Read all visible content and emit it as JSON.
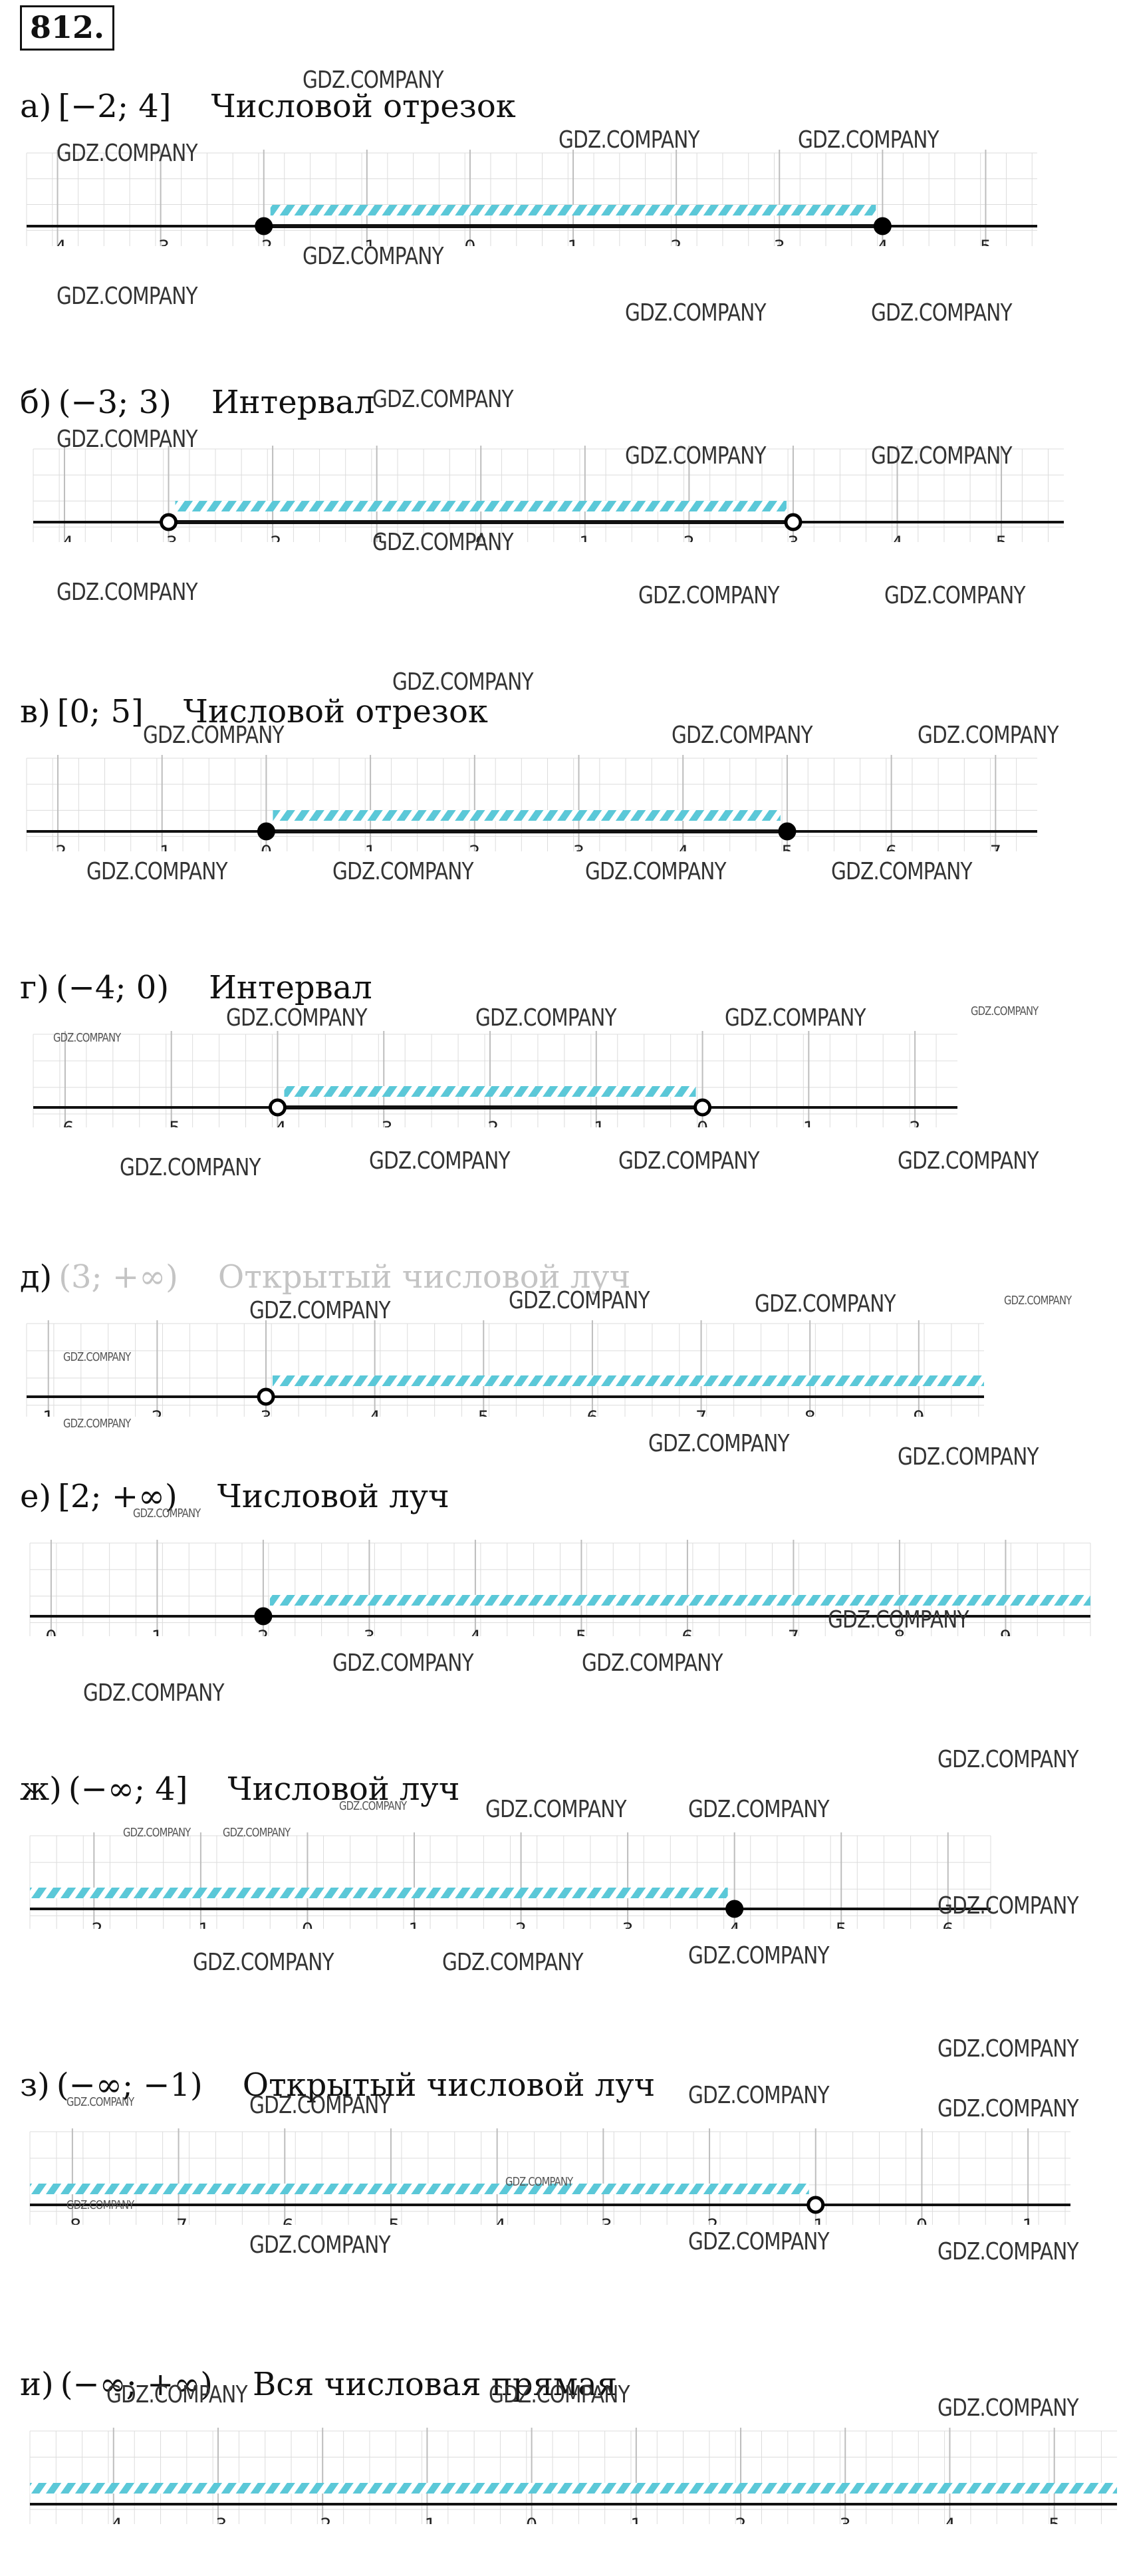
{
  "problem_number": "812.",
  "watermark_text": "GDZ.COMPANY",
  "hatch_color": "#5bc8d8",
  "axis_color": "#111111",
  "grid_color": "#dcdcdc",
  "items": [
    {
      "label": "а)",
      "notation": "[−2; 4]",
      "name": "Числовой отрезок",
      "ticks": [
        -4,
        -3,
        -2,
        -1,
        0,
        1,
        2,
        3,
        4,
        5
      ],
      "tick_labels": [
        "-4",
        "-3",
        "-2",
        "-1",
        "0",
        "1",
        "2",
        "3",
        "4",
        "5"
      ],
      "axis_range": [
        -4.3,
        5.5
      ],
      "hatch_range": [
        -2,
        4
      ],
      "endpoints": [
        {
          "value": -2,
          "kind": "closed"
        },
        {
          "value": 4,
          "kind": "closed"
        }
      ],
      "faded": false
    },
    {
      "label": "б)",
      "notation": "(−3; 3)",
      "name": "Интервал",
      "ticks": [
        -4,
        -3,
        -2,
        -1,
        0,
        1,
        2,
        3,
        4,
        5
      ],
      "tick_labels": [
        "-4",
        "-3",
        "-2",
        "-1",
        "0",
        "1",
        "2",
        "3",
        "4",
        "5"
      ],
      "axis_range": [
        -4.3,
        5.6
      ],
      "hatch_range": [
        -3,
        3
      ],
      "endpoints": [
        {
          "value": -3,
          "kind": "open"
        },
        {
          "value": 3,
          "kind": "open"
        }
      ],
      "faded": false
    },
    {
      "label": "в)",
      "notation": "[0; 5]",
      "name": "Числовой отрезок",
      "ticks": [
        -2,
        -1,
        0,
        1,
        2,
        3,
        4,
        5,
        6,
        7
      ],
      "tick_labels": [
        "-2",
        "-1",
        "0",
        "1",
        "2",
        "3",
        "4",
        "5",
        "6",
        "7"
      ],
      "axis_range": [
        -2.3,
        7.4
      ],
      "hatch_range": [
        0,
        5
      ],
      "endpoints": [
        {
          "value": 0,
          "kind": "closed"
        },
        {
          "value": 5,
          "kind": "closed"
        }
      ],
      "faded": false
    },
    {
      "label": "г)",
      "notation": "(−4; 0)",
      "name": "Интервал",
      "ticks": [
        -6,
        -5,
        -4,
        -3,
        -2,
        -1,
        0,
        1,
        2
      ],
      "tick_labels": [
        "-6",
        "-5",
        "-4",
        "-3",
        "-2",
        "-1",
        "0",
        "1",
        "2"
      ],
      "axis_range": [
        -6.3,
        2.4
      ],
      "hatch_range": [
        -4,
        0
      ],
      "endpoints": [
        {
          "value": -4,
          "kind": "open"
        },
        {
          "value": 0,
          "kind": "open"
        }
      ],
      "faded": false
    },
    {
      "label": "д)",
      "notation": "(3; +∞)",
      "name": "Открытый числовой луч",
      "ticks": [
        1,
        2,
        3,
        4,
        5,
        6,
        7,
        8,
        9
      ],
      "tick_labels": [
        "1",
        "2",
        "3",
        "4",
        "5",
        "6",
        "7",
        "8",
        "9"
      ],
      "axis_range": [
        0.8,
        9.6
      ],
      "hatch_range": [
        3,
        9.6
      ],
      "endpoints": [
        {
          "value": 3,
          "kind": "open"
        }
      ],
      "faded": true
    },
    {
      "label": "е)",
      "notation": "[2; +∞)",
      "name": "Числовой луч",
      "ticks": [
        0,
        1,
        2,
        3,
        4,
        5,
        6,
        7,
        8,
        9
      ],
      "tick_labels": [
        "0",
        "1",
        "2",
        "3",
        "4",
        "5",
        "6",
        "7",
        "8",
        "9"
      ],
      "axis_range": [
        -0.2,
        9.8
      ],
      "hatch_range": [
        2,
        9.8
      ],
      "endpoints": [
        {
          "value": 2,
          "kind": "closed"
        }
      ],
      "faded": false
    },
    {
      "label": "ж)",
      "notation": "(−∞; 4]",
      "name": "Числовой луч",
      "ticks": [
        -2,
        -1,
        0,
        1,
        2,
        3,
        4,
        5,
        6
      ],
      "tick_labels": [
        "-2",
        "-1",
        "0",
        "1",
        "2",
        "3",
        "4",
        "5",
        "6"
      ],
      "axis_range": [
        -2.6,
        6.4
      ],
      "hatch_range": [
        -2.6,
        4
      ],
      "endpoints": [
        {
          "value": 4,
          "kind": "closed"
        }
      ],
      "faded": false
    },
    {
      "label": "з)",
      "notation": "(−∞; −1)",
      "name": "Открытый числовой луч",
      "ticks": [
        -8,
        -7,
        -6,
        -5,
        -4,
        -3,
        -2,
        -1,
        0,
        1
      ],
      "tick_labels": [
        "-8",
        "-7",
        "-6",
        "-5",
        "-4",
        "-3",
        "-2",
        "-1",
        "0",
        "1"
      ],
      "axis_range": [
        -8.4,
        1.4
      ],
      "hatch_range": [
        -8.4,
        -1
      ],
      "endpoints": [
        {
          "value": -1,
          "kind": "open"
        }
      ],
      "faded": false
    },
    {
      "label": "и)",
      "notation": "(−∞; +∞)",
      "name": "Вся числовая прямая",
      "ticks": [
        -4,
        -3,
        -2,
        -1,
        0,
        1,
        2,
        3,
        4,
        5
      ],
      "tick_labels": [
        "-4",
        "-3",
        "-2",
        "-1",
        "0",
        "1",
        "2",
        "3",
        "4",
        "5"
      ],
      "axis_range": [
        -4.8,
        5.6
      ],
      "hatch_range": [
        -4.8,
        5.6
      ],
      "endpoints": [],
      "faded": false
    }
  ]
}
